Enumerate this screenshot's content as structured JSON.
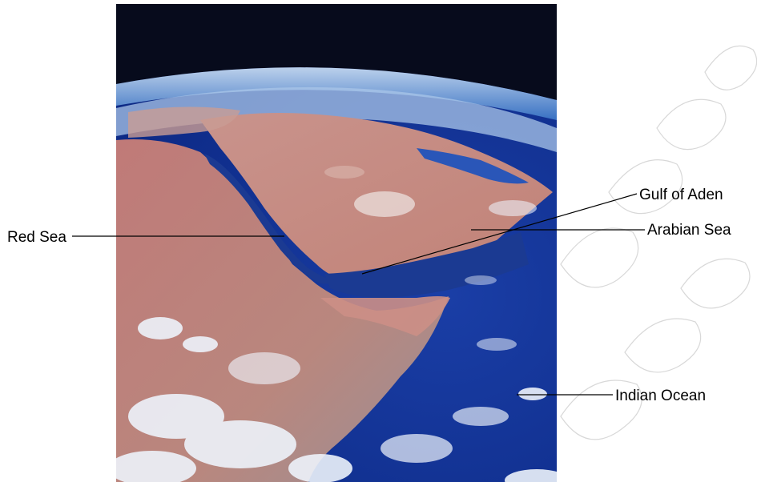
{
  "image": {
    "type": "satellite-photo",
    "subject": "Horn of Africa and Arabian Peninsula from orbit",
    "colors": {
      "space": "#070b1c",
      "ocean": "#1b3fa8",
      "deep_ocean": "#0e2b8a",
      "desert": "#c98a80",
      "clouds": "#eef3fb",
      "leader_line": "#000000"
    }
  },
  "labels": {
    "red_sea": "Red Sea",
    "gulf_of_aden": "Gulf of Aden",
    "arabian_sea": "Arabian Sea",
    "indian_ocean": "Indian Ocean"
  }
}
